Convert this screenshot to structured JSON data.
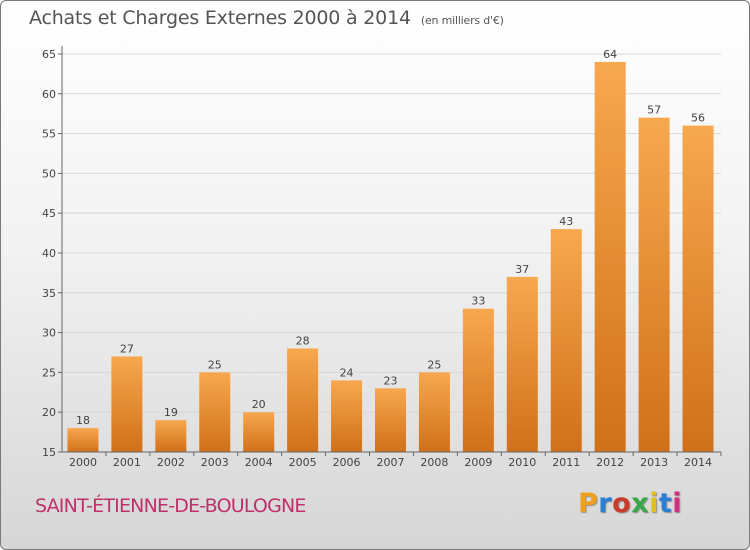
{
  "title": "Achats et Charges Externes 2000 à 2014",
  "unit": "(en milliers d'€)",
  "commune": "SAINT-ÉTIENNE-DE-BOULOGNE",
  "logo": {
    "text": "Proxiti",
    "colors": [
      "#f0a020",
      "#2a7fd4",
      "#c83a2a",
      "#3aa84a",
      "#e0c020",
      "#2a7fd4",
      "#d03080"
    ]
  },
  "colors": {
    "bar_light": "#f7a84e",
    "bar_dark": "#d0701a",
    "axis": "#666666",
    "grid": "#d8d8d8",
    "text": "#444444",
    "commune": "#c0306a"
  },
  "chart_data": {
    "type": "bar",
    "categories": [
      "2000",
      "2001",
      "2002",
      "2003",
      "2004",
      "2005",
      "2006",
      "2007",
      "2008",
      "2009",
      "2010",
      "2011",
      "2012",
      "2013",
      "2014"
    ],
    "values": [
      18,
      27,
      19,
      25,
      20,
      28,
      24,
      23,
      25,
      33,
      37,
      43,
      64,
      57,
      56
    ],
    "value_labels": [
      "18",
      "27",
      "19",
      "25",
      "20",
      "28",
      "24",
      "23",
      "25",
      "33",
      "37",
      "43",
      "64",
      "57",
      "56"
    ],
    "yticks": [
      15,
      20,
      25,
      30,
      35,
      40,
      45,
      50,
      55,
      60,
      65
    ],
    "ytick_labels": [
      "15",
      "20",
      "25",
      "30",
      "35",
      "40",
      "45",
      "50",
      "55",
      "60",
      "65"
    ],
    "ylim": [
      15,
      66
    ],
    "xlabel": "",
    "ylabel": "",
    "grid": true,
    "legend": "none"
  }
}
